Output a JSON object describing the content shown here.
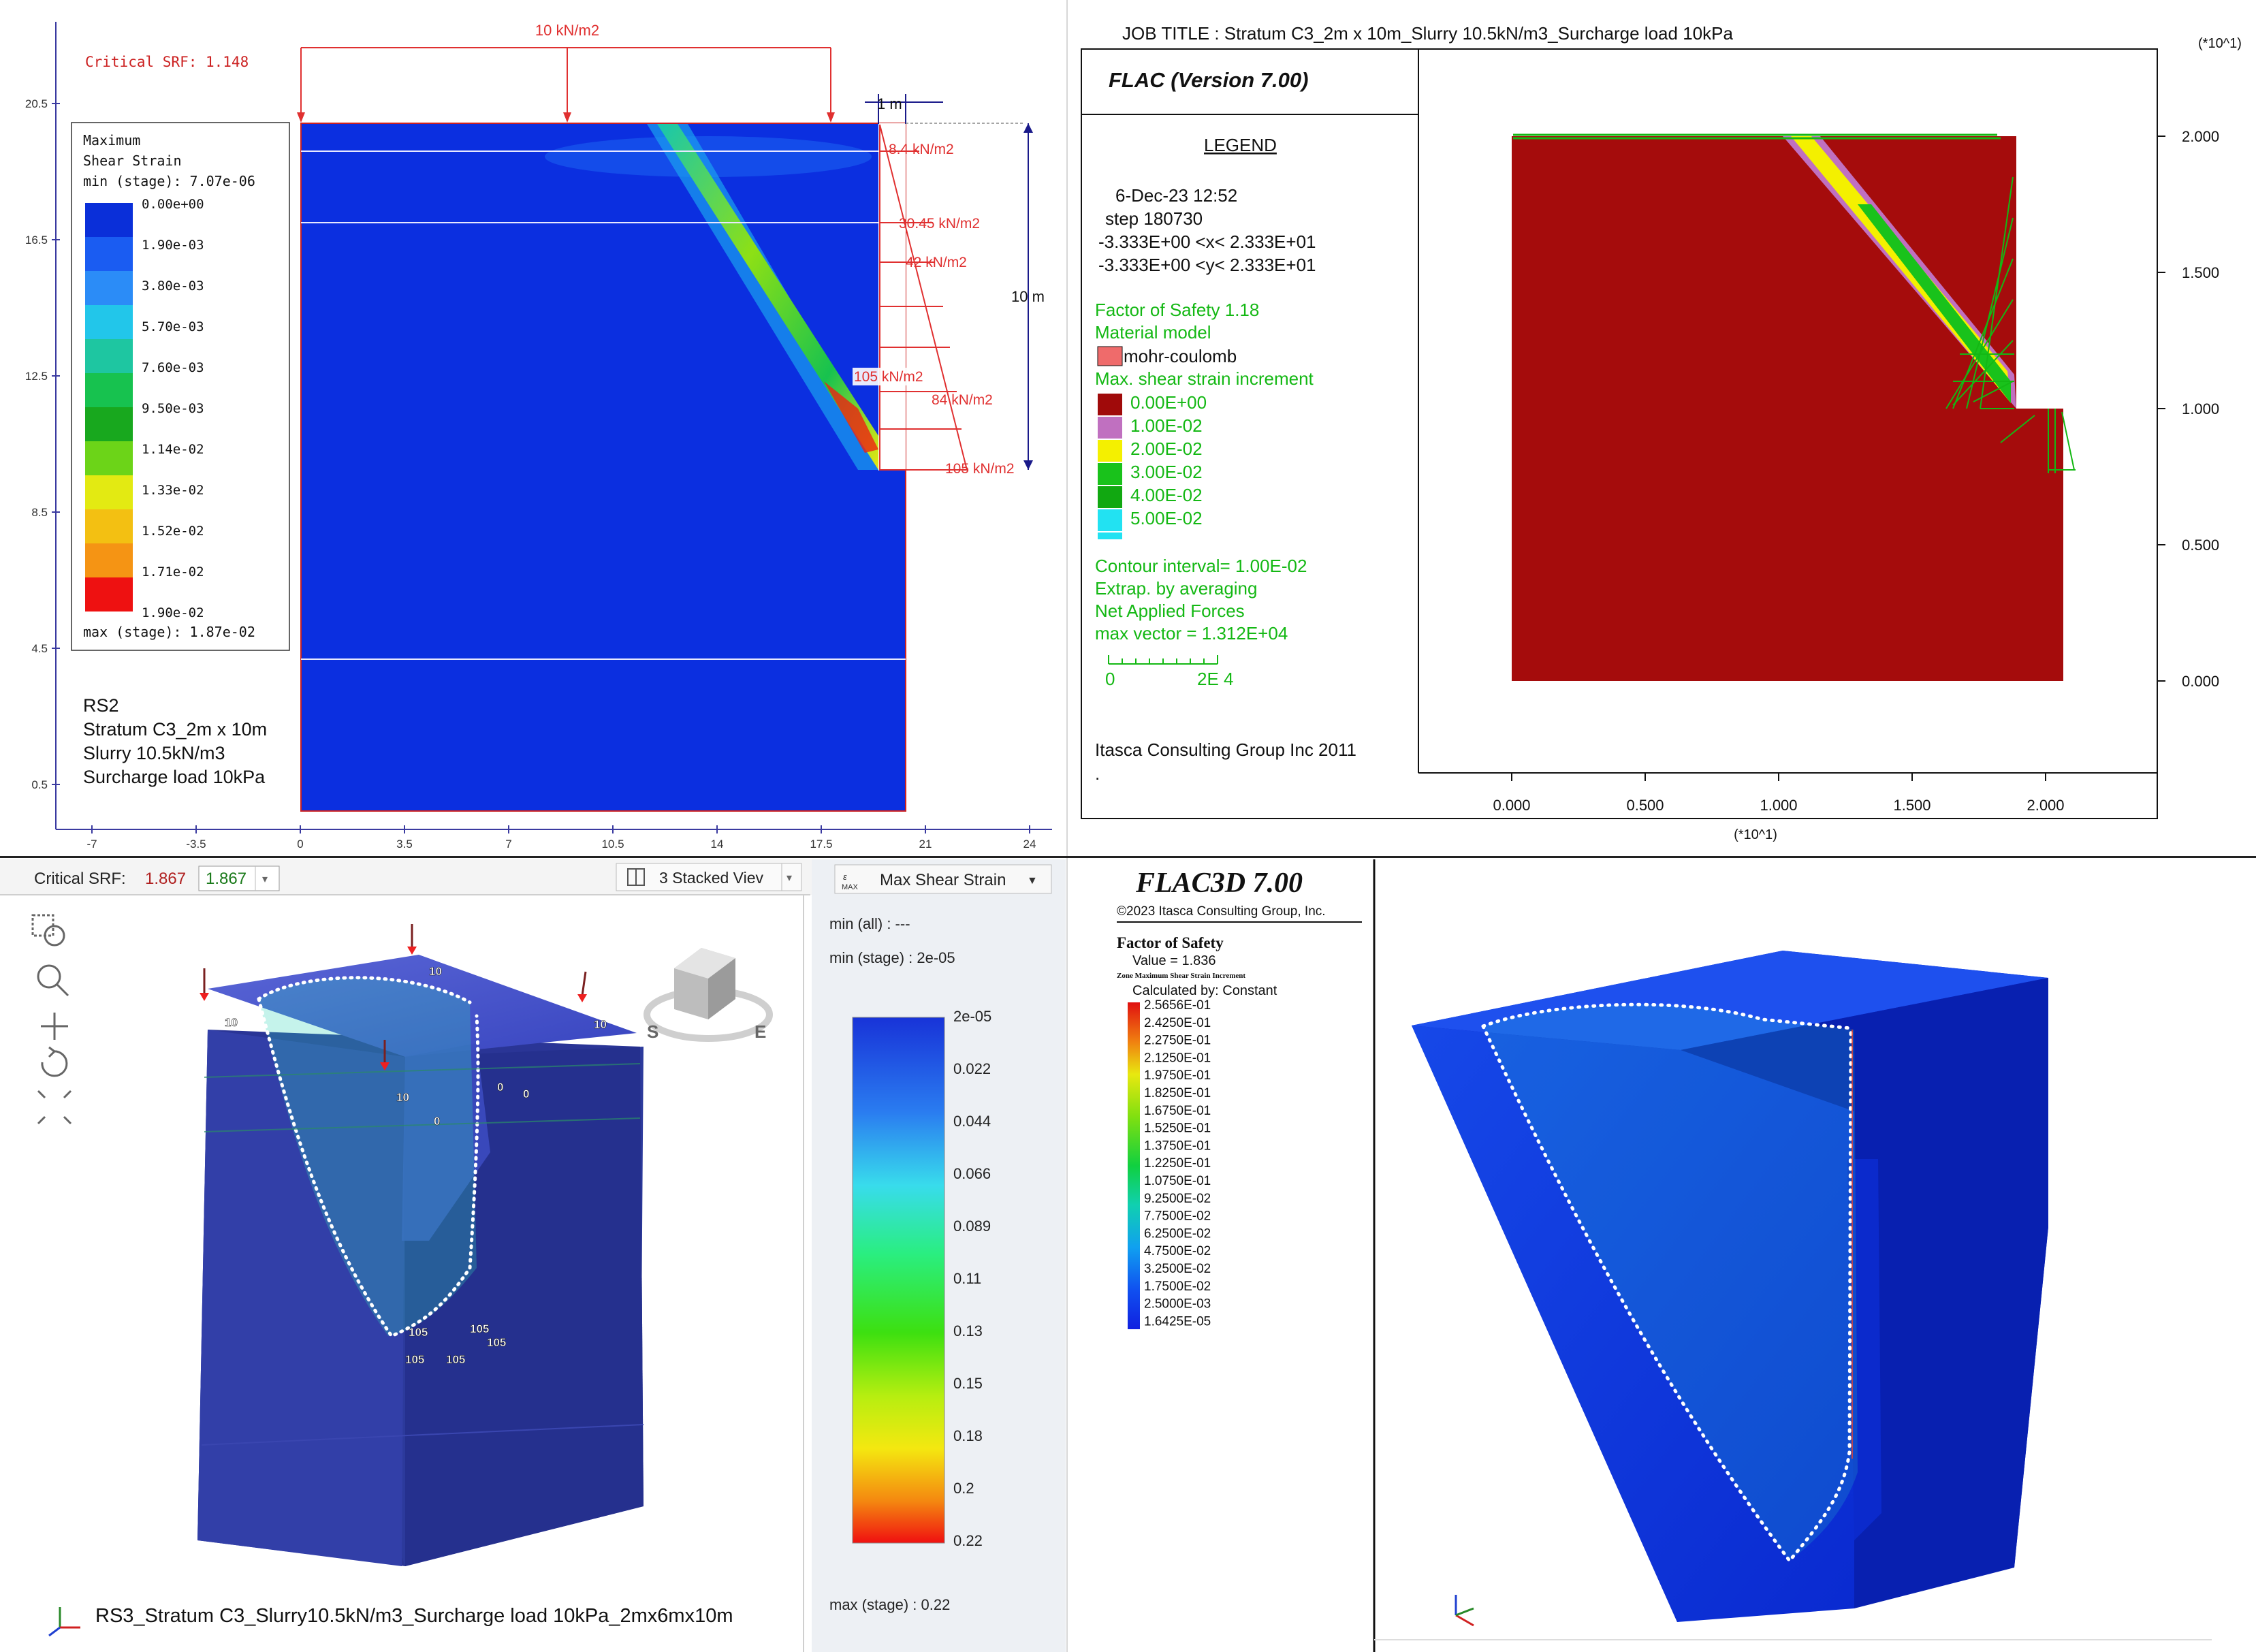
{
  "rs2": {
    "critical_srf": "Critical SRF: 1.148",
    "surcharge_label": "10 kN/m2",
    "dim_top": "1 m",
    "dim_height": "10 m",
    "pressures": [
      "8.4 kN/m2",
      "30.45 kN/m2",
      "42 kN/m2",
      "105 kN/m2",
      "84 kN/m2",
      "105 kN/m2"
    ],
    "legend_title": [
      "Maximum",
      "Shear Strain",
      "min (stage): 7.07e-06"
    ],
    "legend_values": [
      "0.00e+00",
      "1.90e-03",
      "3.80e-03",
      "5.70e-03",
      "7.60e-03",
      "9.50e-03",
      "1.14e-02",
      "1.33e-02",
      "1.52e-02",
      "1.71e-02",
      "1.90e-02"
    ],
    "legend_max": "max (stage): 1.87e-02",
    "legend_colors": [
      "#0a2fd9",
      "#1a5cf2",
      "#2b8cf7",
      "#22c6ea",
      "#1ec6a1",
      "#17c24f",
      "#18a81e",
      "#6cd418",
      "#e3ea12",
      "#f3c012",
      "#f59414",
      "#ee1111"
    ],
    "y_ticks": [
      "20.5",
      "16.5",
      "12.5",
      "8.5",
      "4.5",
      "0.5"
    ],
    "x_ticks": [
      "-7",
      "-3.5",
      "0",
      "3.5",
      "7",
      "10.5",
      "14",
      "17.5",
      "21",
      "24"
    ],
    "info": [
      "RS2",
      "Stratum C3_2m x 10m",
      "Slurry 10.5kN/m3",
      "Surcharge load 10kPa"
    ]
  },
  "flac": {
    "job_title": "JOB TITLE : Stratum C3_2m x 10m_Slurry 10.5kN/m3_Surcharge load 10kPa",
    "version": "FLAC (Version 7.00)",
    "legend_heading": "LEGEND",
    "date": "6-Dec-23  12:52",
    "step": "step    180730",
    "x_range": "-3.333E+00 <x<  2.333E+01",
    "y_range": "-3.333E+00 <y<  2.333E+01",
    "fos": "Factor of Safety  1.18",
    "material_model": "Material model",
    "material_name": "mohr-coulomb",
    "strain_title": "Max. shear strain increment",
    "strain_values": [
      "0.00E+00",
      "1.00E-02",
      "2.00E-02",
      "3.00E-02",
      "4.00E-02",
      "5.00E-02"
    ],
    "strain_colors": [
      "#a00a0a",
      "#c070c0",
      "#f4f000",
      "#19c21b",
      "#11a811",
      "#22e2f2"
    ],
    "material_color": "#ef6b6b",
    "contour_interval": "Contour interval=  1.00E-02",
    "extrap": "Extrap. by averaging",
    "net_forces": "Net Applied Forces",
    "max_vector": "max vector =    1.312E+04",
    "scale_labels": [
      "0",
      "2E  4"
    ],
    "copyright": "Itasca Consulting Group Inc 2011",
    "dot": ".",
    "axis_unit_y": "(*10^1)",
    "axis_unit_x": "(*10^1)",
    "y_ticks": [
      "2.000",
      "1.500",
      "1.000",
      "0.500",
      "0.000"
    ],
    "x_ticks": [
      "0.000",
      "0.500",
      "1.000",
      "1.500",
      "2.000"
    ]
  },
  "rs3": {
    "critical_srf_label": "Critical SRF:",
    "critical_srf_value": "1.867",
    "srf_select": "1.867",
    "stacked_view": "3 Stacked Viev",
    "contour_dropdown": "Max Shear Strain",
    "min_all": "min (all) :       ---",
    "min_stage": "min (stage) :  2e-05",
    "legend_values": [
      "2e-05",
      "0.022",
      "0.044",
      "0.066",
      "0.089",
      "0.11",
      "0.13",
      "0.15",
      "0.18",
      "0.2",
      "0.22"
    ],
    "max_stage": "max (stage) :  0.22",
    "load_labels": [
      "10",
      "10",
      "10",
      "10",
      "0",
      "0",
      "0",
      "105",
      "105",
      "105",
      "105",
      "105"
    ],
    "nav_cube": [
      "S",
      "E"
    ],
    "caption": "RS3_Stratum C3_Slurry10.5kN/m3_Surcharge load 10kPa_2mx6mx10m"
  },
  "flac3d": {
    "title": "FLAC3D 7.00",
    "copyright": "©2023 Itasca Consulting Group, Inc.",
    "fos_title": "Factor of Safety",
    "fos_value": "Value = 1.836",
    "zone_label": "Zone Maximum Shear Strain Increment",
    "calc": "Calculated by: Constant",
    "legend_values": [
      "2.5656E-01",
      "2.4250E-01",
      "2.2750E-01",
      "2.1250E-01",
      "1.9750E-01",
      "1.8250E-01",
      "1.6750E-01",
      "1.5250E-01",
      "1.3750E-01",
      "1.2250E-01",
      "1.0750E-01",
      "9.2500E-02",
      "7.7500E-02",
      "6.2500E-02",
      "4.7500E-02",
      "3.2500E-02",
      "1.7500E-02",
      "2.5000E-03",
      "1.6425E-05"
    ]
  }
}
